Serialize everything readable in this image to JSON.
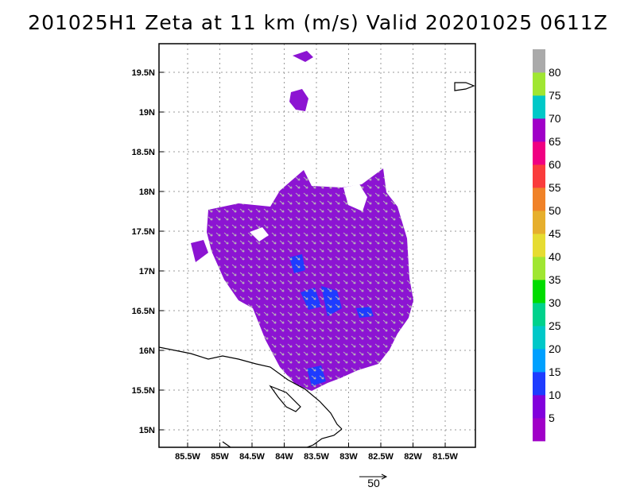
{
  "title": "201025H1 Zeta at 11 km (m/s) Valid 20201025 0611Z",
  "axes": {
    "lat_ticks": [
      "15N",
      "15.5N",
      "16N",
      "16.5N",
      "17N",
      "17.5N",
      "18N",
      "18.5N",
      "19N",
      "19.5N"
    ],
    "lon_ticks": [
      "85.5W",
      "85W",
      "84.5W",
      "84W",
      "83.5W",
      "83W",
      "82.5W",
      "82W",
      "81.5W"
    ],
    "grid": true
  },
  "colorbar": {
    "colors": [
      "#a000c8",
      "#8200dc",
      "#1e3cff",
      "#00a0ff",
      "#00c8c8",
      "#00d28c",
      "#00dc00",
      "#a0e632",
      "#e6dc32",
      "#e6af2d",
      "#f08228",
      "#fa3c3c",
      "#f00082",
      "#a000c8",
      "#00c8c8",
      "#a0e632",
      "#aaaaaa"
    ],
    "labels": [
      "5",
      "10",
      "15",
      "20",
      "25",
      "30",
      "35",
      "40",
      "45",
      "50",
      "55",
      "60",
      "65",
      "70",
      "75",
      "80"
    ]
  },
  "vector_scale": {
    "label": "50"
  },
  "colors": {
    "field_main": "#8c14d2",
    "field_high": "#1e3cff",
    "arrows": "#b4b4b4",
    "coast": "#000000",
    "grid": "#999999"
  }
}
